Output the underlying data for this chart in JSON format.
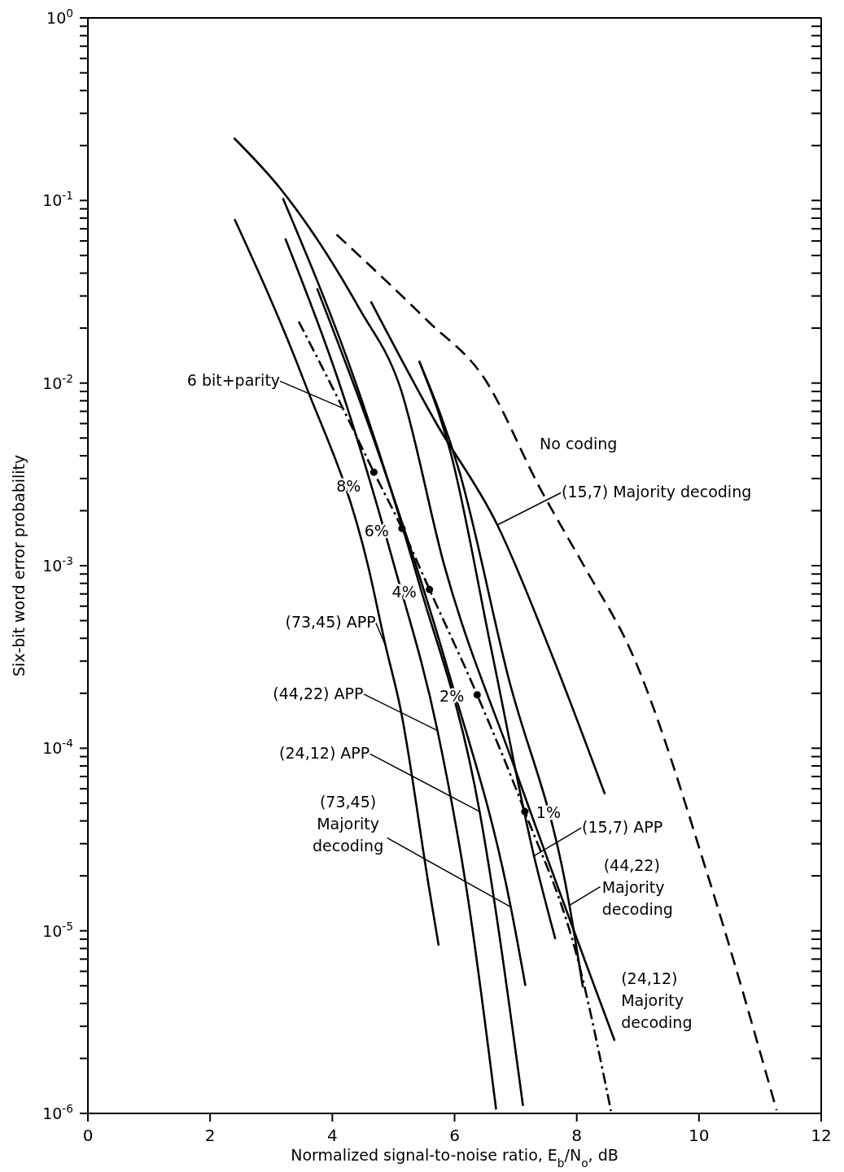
{
  "chart_data": {
    "type": "line",
    "xlabel": "Normalized signal-to-noise ratio, E$_{b}$/N$_{o}$, dB",
    "ylabel": "Six-bit word error probability",
    "xlim": [
      0,
      12
    ],
    "xticks": [
      0,
      2,
      4,
      6,
      8,
      10,
      12
    ],
    "ylim": [
      1e-06,
      1
    ],
    "log": "y",
    "yticks": [
      {
        "value": 1e-06,
        "label": "10$^{-6}$"
      },
      {
        "value": 2e-06,
        "label": null
      },
      {
        "value": 3e-06,
        "label": null
      },
      {
        "value": 4e-06,
        "label": null
      },
      {
        "value": 5e-06,
        "label": null
      },
      {
        "value": 6e-06,
        "label": null
      },
      {
        "value": 7e-06,
        "label": null
      },
      {
        "value": 8e-06,
        "label": null
      },
      {
        "value": 9e-06,
        "label": null
      },
      {
        "value": 1e-05,
        "label": "10$^{-5}$"
      },
      {
        "value": 2e-05,
        "label": null
      },
      {
        "value": 3e-05,
        "label": null
      },
      {
        "value": 4e-05,
        "label": null
      },
      {
        "value": 5e-05,
        "label": null
      },
      {
        "value": 6e-05,
        "label": null
      },
      {
        "value": 7e-05,
        "label": null
      },
      {
        "value": 8e-05,
        "label": null
      },
      {
        "value": 9e-05,
        "label": null
      },
      {
        "value": 0.0001,
        "label": "10$^{-4}$"
      },
      {
        "value": 0.0002,
        "label": null
      },
      {
        "value": 0.0003,
        "label": null
      },
      {
        "value": 0.0004,
        "label": null
      },
      {
        "value": 0.0005,
        "label": null
      },
      {
        "value": 0.0006,
        "label": null
      },
      {
        "value": 0.0007,
        "label": null
      },
      {
        "value": 0.0008,
        "label": null
      },
      {
        "value": 0.0009,
        "label": null
      },
      {
        "value": 0.001,
        "label": "10$^{-3}$"
      },
      {
        "value": 0.002,
        "label": null
      },
      {
        "value": 0.003,
        "label": null
      },
      {
        "value": 0.004,
        "label": null
      },
      {
        "value": 0.005,
        "label": null
      },
      {
        "value": 0.006,
        "label": null
      },
      {
        "value": 0.007,
        "label": null
      },
      {
        "value": 0.008,
        "label": null
      },
      {
        "value": 0.009,
        "label": null
      },
      {
        "value": 0.01,
        "label": "10$^{-2}$"
      },
      {
        "value": 0.02,
        "label": null
      },
      {
        "value": 0.03,
        "label": null
      },
      {
        "value": 0.04,
        "label": null
      },
      {
        "value": 0.05,
        "label": null
      },
      {
        "value": 0.06,
        "label": null
      },
      {
        "value": 0.07,
        "label": null
      },
      {
        "value": 0.08,
        "label": null
      },
      {
        "value": 0.09,
        "label": null
      },
      {
        "value": 0.1,
        "label": "10$^{-1}$"
      },
      {
        "value": 0.2,
        "label": null
      },
      {
        "value": 0.3,
        "label": null
      },
      {
        "value": 0.4,
        "label": null
      },
      {
        "value": 0.5,
        "label": null
      },
      {
        "value": 0.6,
        "label": null
      },
      {
        "value": 0.7,
        "label": null
      },
      {
        "value": 0.8,
        "label": null
      },
      {
        "value": 0.9,
        "label": null
      },
      {
        "value": 1,
        "label": "10$^{0}$"
      }
    ],
    "marker": "none",
    "series": [
      {
        "color": "#000000",
        "line_style": "solid",
        "x": [
          2.4,
          3.53,
          4.59,
          4.87,
          5.11,
          5.59,
          5.74
        ],
        "values": [
          0.079,
          0.0104,
          0.00098,
          0.000366,
          0.000168,
          1.66e-05,
          8.3e-06
        ]
      },
      {
        "color": "#000000",
        "line_style": "solid",
        "x": [
          3.23,
          4.1,
          5.02,
          5.72,
          6.2,
          6.68
        ],
        "values": [
          0.062,
          0.0103,
          0.00098,
          0.000125,
          1.66e-05,
          1.05e-06
        ]
      },
      {
        "color": "#000000",
        "line_style": "solid",
        "x": [
          3.19,
          4.37,
          5.42,
          6.41,
          7.12
        ],
        "values": [
          0.103,
          0.0103,
          0.0008,
          4.5e-05,
          1.1e-06
        ]
      },
      {
        "color": "#000000",
        "line_style": "solid",
        "x": [
          3.75,
          4.76,
          5.94,
          6.92,
          7.16
        ],
        "values": [
          0.033,
          0.0041,
          0.000236,
          1.35e-05,
          5e-06
        ]
      },
      {
        "color": "#000000",
        "line_style": "solid",
        "x": [
          4.63,
          5.68,
          6.7,
          7.65,
          8.46
        ],
        "values": [
          0.028,
          0.0062,
          0.00167,
          0.00029,
          5.6e-05
        ]
      },
      {
        "color": "#000000",
        "line_style": "solid",
        "x": [
          5.42,
          5.94,
          6.6,
          7.3,
          7.65
        ],
        "values": [
          0.0132,
          0.0041,
          0.00035,
          2.57e-05,
          9e-06
        ]
      },
      {
        "color": "#000000",
        "line_style": "solid",
        "x": [
          5.42,
          6.07,
          6.86,
          7.88,
          8.1
        ],
        "values": [
          0.0132,
          0.00335,
          0.00026,
          1.38e-05,
          4.9e-06
        ]
      },
      {
        "color": "#000000",
        "line_style": "solid",
        "x": [
          2.39,
          3.16,
          4.45,
          5.1,
          5.84,
          6.99,
          8.62
        ],
        "values": [
          0.22,
          0.115,
          0.0253,
          0.0097,
          0.00098,
          7.7e-05,
          2.5e-06
        ]
      },
      {
        "color": "#000000",
        "line_style": "dashdot",
        "x": [
          3.45,
          4.17,
          4.68,
          5.14,
          5.59,
          6.37,
          7.15,
          8.04,
          8.56
        ],
        "values": [
          0.0217,
          0.0073,
          0.00325,
          0.0016,
          0.00074,
          0.000196,
          4.5e-05,
          6.5e-06,
          1.03e-06
        ]
      },
      {
        "color": "#000000",
        "line_style": "dashed",
        "x": [
          4.07,
          5.56,
          6.48,
          7.4,
          8.13,
          8.87,
          10.18,
          11.27
        ],
        "values": [
          0.065,
          0.0219,
          0.0107,
          0.00265,
          0.00098,
          0.00035,
          1.84e-05,
          1.04e-06
        ]
      },
      {
        "type": "scatter",
        "marker": "circle",
        "color": "#000000",
        "x": [
          4.68,
          5.14,
          5.59,
          6.37,
          7.15
        ],
        "values": [
          0.00325,
          0.0016,
          0.00074,
          0.000196,
          4.5e-05
        ]
      }
    ],
    "annotations": [
      {
        "text": "6 bit+parity",
        "x": 4.17,
        "y": 0.0073
      },
      "No coding",
      {
        "text": "(15,7) Majority decoding",
        "x": 6.7,
        "y": 0.00167
      },
      {
        "text": "(73,45) APP",
        "x": 4.87,
        "y": 0.000366
      },
      {
        "text": "(44,22) APP",
        "x": 5.72,
        "y": 0.000125
      },
      {
        "text": "(24,12) APP",
        "x": 6.41,
        "y": 4.5e-05
      },
      {
        "text": "(73,45) Majority decoding",
        "x": 6.92,
        "y": 1.35e-05
      },
      {
        "text": "(15,7) APP",
        "x": 7.3,
        "y": 2.57e-05
      },
      {
        "text": "(44,22) Majority decoding",
        "x": 7.88,
        "y": 1.38e-05
      },
      {
        "text": "(24,12) Majority decoding",
        "x": 8.62,
        "y": 2.5e-06
      },
      {
        "text": "8%",
        "x": 4.68,
        "y": 0.00325
      },
      {
        "text": "6%",
        "x": 5.14,
        "y": 0.0016
      },
      {
        "text": "4%",
        "x": 5.59,
        "y": 0.00074
      },
      {
        "text": "2%",
        "x": 6.37,
        "y": 0.000196
      },
      {
        "text": "1%",
        "x": 7.15,
        "y": 4.5e-05
      }
    ]
  }
}
